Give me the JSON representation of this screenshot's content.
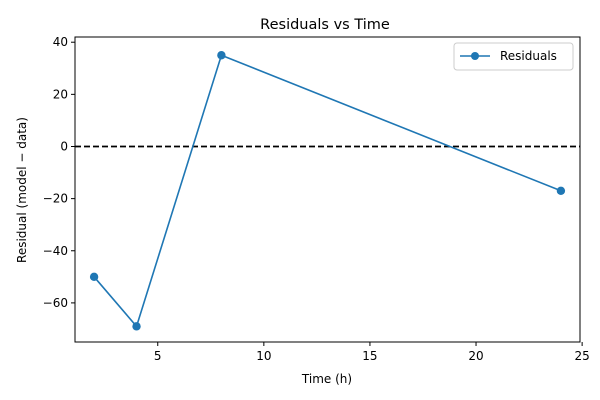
{
  "chart_data": {
    "type": "line",
    "title": "Residuals vs Time",
    "xlabel": "Time (h)",
    "ylabel": "Residual (model − data)",
    "xlim": [
      1.1,
      24.9
    ],
    "ylim": [
      -75,
      42
    ],
    "x_ticks": [
      5,
      10,
      15,
      20,
      25
    ],
    "x_tick_labels": [
      "5",
      "10",
      "15",
      "20",
      "25"
    ],
    "y_ticks": [
      -60,
      -40,
      -20,
      0,
      20,
      40
    ],
    "y_tick_labels": [
      "−60",
      "−40",
      "−20",
      "0",
      "20",
      "40"
    ],
    "grid": false,
    "legend_position": "top-right",
    "reference_line": {
      "y": 0,
      "style": "dashed",
      "color": "#000000"
    },
    "series": [
      {
        "name": "Residuals",
        "color": "#1f77b4",
        "marker": "circle",
        "x": [
          2,
          4,
          8,
          24
        ],
        "y": [
          -50,
          -69,
          35,
          -17
        ]
      }
    ]
  }
}
